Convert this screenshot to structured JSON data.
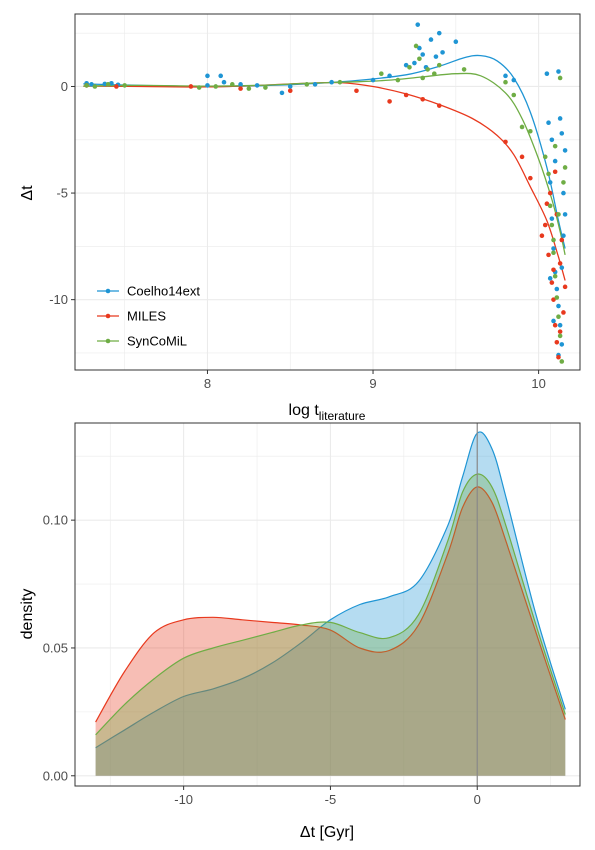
{
  "colors": {
    "Coelho14ext": "#1f95d4",
    "MILES": "#e8391e",
    "SynCoMiL": "#6fad45",
    "panel_border": "#333333",
    "grid": "#ebebeb"
  },
  "chart_data": [
    {
      "type": "scatter",
      "xlabel_main": "log t",
      "xlabel_sub": "literature",
      "ylabel": "Δt",
      "xlim": [
        7.2,
        10.25
      ],
      "ylim": [
        -13.3,
        3.4
      ],
      "x_ticks": [
        8,
        9,
        10
      ],
      "y_ticks": [
        0,
        -5,
        -10
      ],
      "grid": true,
      "legend_position": "bottom-left",
      "legend": [
        "Coelho14ext",
        "MILES",
        "SynCoMiL"
      ],
      "series": [
        {
          "name": "Coelho14ext",
          "color": "#1f95d4",
          "smooth": [
            [
              7.25,
              0.12
            ],
            [
              7.6,
              0.05
            ],
            [
              8.0,
              0.0
            ],
            [
              8.3,
              0.03
            ],
            [
              8.6,
              0.12
            ],
            [
              8.9,
              0.28
            ],
            [
              9.2,
              0.55
            ],
            [
              9.4,
              0.95
            ],
            [
              9.55,
              1.35
            ],
            [
              9.65,
              1.45
            ],
            [
              9.75,
              1.2
            ],
            [
              9.85,
              0.4
            ],
            [
              9.95,
              -1.2
            ],
            [
              10.05,
              -3.8
            ],
            [
              10.12,
              -6.3
            ],
            [
              10.16,
              -7.6
            ]
          ],
          "points": [
            [
              7.27,
              0.15
            ],
            [
              7.3,
              0.1
            ],
            [
              7.38,
              0.12
            ],
            [
              7.42,
              0.15
            ],
            [
              7.46,
              0.08
            ],
            [
              8.0,
              0.5
            ],
            [
              8.0,
              0.05
            ],
            [
              8.08,
              0.5
            ],
            [
              8.1,
              0.2
            ],
            [
              8.2,
              0.1
            ],
            [
              8.3,
              0.05
            ],
            [
              8.45,
              -0.3
            ],
            [
              8.5,
              0.0
            ],
            [
              8.65,
              0.1
            ],
            [
              8.75,
              0.2
            ],
            [
              9.0,
              0.3
            ],
            [
              9.1,
              0.5
            ],
            [
              9.2,
              1.0
            ],
            [
              9.25,
              1.1
            ],
            [
              9.27,
              2.9
            ],
            [
              9.28,
              1.8
            ],
            [
              9.3,
              1.5
            ],
            [
              9.32,
              0.9
            ],
            [
              9.35,
              2.2
            ],
            [
              9.38,
              1.4
            ],
            [
              9.4,
              2.5
            ],
            [
              9.42,
              1.6
            ],
            [
              9.5,
              2.1
            ],
            [
              9.8,
              0.5
            ],
            [
              9.85,
              0.3
            ],
            [
              10.05,
              0.6
            ],
            [
              10.06,
              -1.7
            ],
            [
              10.08,
              -2.5
            ],
            [
              10.1,
              -3.5
            ],
            [
              10.12,
              0.7
            ],
            [
              10.13,
              -1.5
            ],
            [
              10.14,
              -2.2
            ],
            [
              10.16,
              -3.0
            ],
            [
              10.07,
              -4.5
            ],
            [
              10.08,
              -6.2
            ],
            [
              10.09,
              -7.6
            ],
            [
              10.1,
              -8.7
            ],
            [
              10.11,
              -9.5
            ],
            [
              10.12,
              -10.3
            ],
            [
              10.13,
              -11.2
            ],
            [
              10.14,
              -12.1
            ],
            [
              10.15,
              -7.0
            ],
            [
              10.16,
              -6.0
            ],
            [
              10.07,
              -9.0
            ],
            [
              10.12,
              -12.6
            ],
            [
              10.09,
              -11.0
            ],
            [
              10.15,
              -5.0
            ],
            [
              10.14,
              -8.5
            ]
          ]
        },
        {
          "name": "MILES",
          "color": "#e8391e",
          "smooth": [
            [
              7.25,
              0.02
            ],
            [
              7.6,
              0.0
            ],
            [
              8.0,
              -0.02
            ],
            [
              8.3,
              0.05
            ],
            [
              8.6,
              0.15
            ],
            [
              8.8,
              0.18
            ],
            [
              9.0,
              0.0
            ],
            [
              9.2,
              -0.35
            ],
            [
              9.4,
              -0.85
            ],
            [
              9.6,
              -1.5
            ],
            [
              9.75,
              -2.3
            ],
            [
              9.85,
              -3.2
            ],
            [
              9.95,
              -4.7
            ],
            [
              10.05,
              -6.3
            ],
            [
              10.12,
              -8.0
            ],
            [
              10.16,
              -9.1
            ]
          ],
          "points": [
            [
              7.27,
              0.05
            ],
            [
              7.45,
              0.0
            ],
            [
              7.9,
              0.0
            ],
            [
              8.2,
              -0.1
            ],
            [
              8.5,
              -0.2
            ],
            [
              8.9,
              -0.2
            ],
            [
              9.1,
              -0.7
            ],
            [
              9.2,
              -0.4
            ],
            [
              9.3,
              -0.6
            ],
            [
              9.4,
              -0.9
            ],
            [
              9.8,
              -2.6
            ],
            [
              9.9,
              -3.3
            ],
            [
              9.95,
              -4.3
            ],
            [
              10.02,
              -7.0
            ],
            [
              10.04,
              -6.5
            ],
            [
              10.06,
              -7.9
            ],
            [
              10.08,
              -9.2
            ],
            [
              10.09,
              -10.0
            ],
            [
              10.1,
              -11.2
            ],
            [
              10.11,
              -12.0
            ],
            [
              10.12,
              -12.7
            ],
            [
              10.13,
              -8.3
            ],
            [
              10.14,
              -7.2
            ],
            [
              10.15,
              -10.6
            ],
            [
              10.16,
              -9.4
            ],
            [
              10.07,
              -5.0
            ],
            [
              10.11,
              -6.0
            ],
            [
              10.1,
              -4.0
            ],
            [
              10.13,
              -11.5
            ],
            [
              10.09,
              -8.6
            ],
            [
              10.05,
              -5.5
            ]
          ]
        },
        {
          "name": "SynCoMiL",
          "color": "#6fad45",
          "smooth": [
            [
              7.25,
              0.02
            ],
            [
              7.6,
              0.05
            ],
            [
              8.0,
              0.02
            ],
            [
              8.3,
              0.05
            ],
            [
              8.6,
              0.15
            ],
            [
              8.9,
              0.22
            ],
            [
              9.1,
              0.3
            ],
            [
              9.3,
              0.45
            ],
            [
              9.5,
              0.6
            ],
            [
              9.65,
              0.5
            ],
            [
              9.8,
              -0.3
            ],
            [
              9.9,
              -1.5
            ],
            [
              10.0,
              -3.4
            ],
            [
              10.08,
              -5.3
            ],
            [
              10.13,
              -6.8
            ],
            [
              10.16,
              -7.9
            ]
          ],
          "points": [
            [
              7.27,
              0.05
            ],
            [
              7.32,
              0.0
            ],
            [
              7.4,
              0.1
            ],
            [
              7.5,
              0.05
            ],
            [
              7.95,
              -0.05
            ],
            [
              8.05,
              0.0
            ],
            [
              8.15,
              0.1
            ],
            [
              8.25,
              -0.1
            ],
            [
              8.35,
              -0.05
            ],
            [
              8.6,
              0.1
            ],
            [
              8.8,
              0.2
            ],
            [
              9.05,
              0.6
            ],
            [
              9.15,
              0.3
            ],
            [
              9.22,
              0.9
            ],
            [
              9.26,
              1.9
            ],
            [
              9.28,
              1.3
            ],
            [
              9.3,
              0.4
            ],
            [
              9.33,
              0.8
            ],
            [
              9.37,
              0.6
            ],
            [
              9.4,
              1.0
            ],
            [
              9.55,
              0.8
            ],
            [
              9.8,
              0.2
            ],
            [
              9.85,
              -0.4
            ],
            [
              9.9,
              -1.9
            ],
            [
              9.95,
              -2.1
            ],
            [
              10.04,
              -3.3
            ],
            [
              10.06,
              -4.1
            ],
            [
              10.07,
              -5.6
            ],
            [
              10.08,
              -6.5
            ],
            [
              10.09,
              -7.8
            ],
            [
              10.1,
              -8.9
            ],
            [
              10.11,
              -9.9
            ],
            [
              10.12,
              -10.8
            ],
            [
              10.13,
              -11.7
            ],
            [
              10.14,
              -12.9
            ],
            [
              10.15,
              -4.5
            ],
            [
              10.16,
              -3.8
            ],
            [
              10.13,
              0.4
            ],
            [
              10.12,
              -6.0
            ],
            [
              10.1,
              -2.8
            ],
            [
              10.09,
              -7.2
            ]
          ]
        }
      ]
    },
    {
      "type": "area",
      "xlabel": "Δt [Gyr]",
      "ylabel": "density",
      "xlim": [
        -13.7,
        3.5
      ],
      "ylim": [
        -0.004,
        0.138
      ],
      "x_ticks": [
        -10,
        -5,
        0
      ],
      "x_tick_labels": [
        "-10",
        "-5",
        "0"
      ],
      "y_ticks": [
        0.0,
        0.05,
        0.1
      ],
      "y_tick_labels": [
        "0.00",
        "0.05",
        "0.10"
      ],
      "vline_x": 0,
      "grid": true,
      "series": [
        {
          "name": "Coelho14ext",
          "color": "#1f95d4",
          "x": [
            -13,
            -12,
            -11,
            -10,
            -9,
            -8,
            -7,
            -6,
            -5,
            -4,
            -3,
            -2,
            -1,
            -0.5,
            0,
            0.5,
            1,
            2,
            3
          ],
          "y": [
            0.011,
            0.018,
            0.025,
            0.031,
            0.034,
            0.038,
            0.044,
            0.052,
            0.061,
            0.067,
            0.07,
            0.076,
            0.098,
            0.117,
            0.134,
            0.128,
            0.108,
            0.063,
            0.026
          ]
        },
        {
          "name": "MILES",
          "color": "#e8391e",
          "x": [
            -13,
            -12,
            -11,
            -10,
            -9,
            -8,
            -7,
            -6,
            -5,
            -4,
            -3,
            -2,
            -1,
            -0.5,
            0,
            0.5,
            1,
            2,
            3
          ],
          "y": [
            0.021,
            0.041,
            0.056,
            0.061,
            0.062,
            0.061,
            0.06,
            0.059,
            0.057,
            0.05,
            0.049,
            0.059,
            0.087,
            0.105,
            0.113,
            0.107,
            0.091,
            0.056,
            0.022
          ]
        },
        {
          "name": "SynCoMiL",
          "color": "#6fad45",
          "x": [
            -13,
            -12,
            -11,
            -10,
            -9,
            -8,
            -7,
            -6,
            -5,
            -4,
            -3,
            -2,
            -1,
            -0.5,
            0,
            0.5,
            1,
            2,
            3
          ],
          "y": [
            0.016,
            0.028,
            0.038,
            0.046,
            0.05,
            0.053,
            0.056,
            0.059,
            0.06,
            0.056,
            0.054,
            0.063,
            0.092,
            0.111,
            0.118,
            0.113,
            0.097,
            0.059,
            0.024
          ]
        }
      ]
    }
  ]
}
